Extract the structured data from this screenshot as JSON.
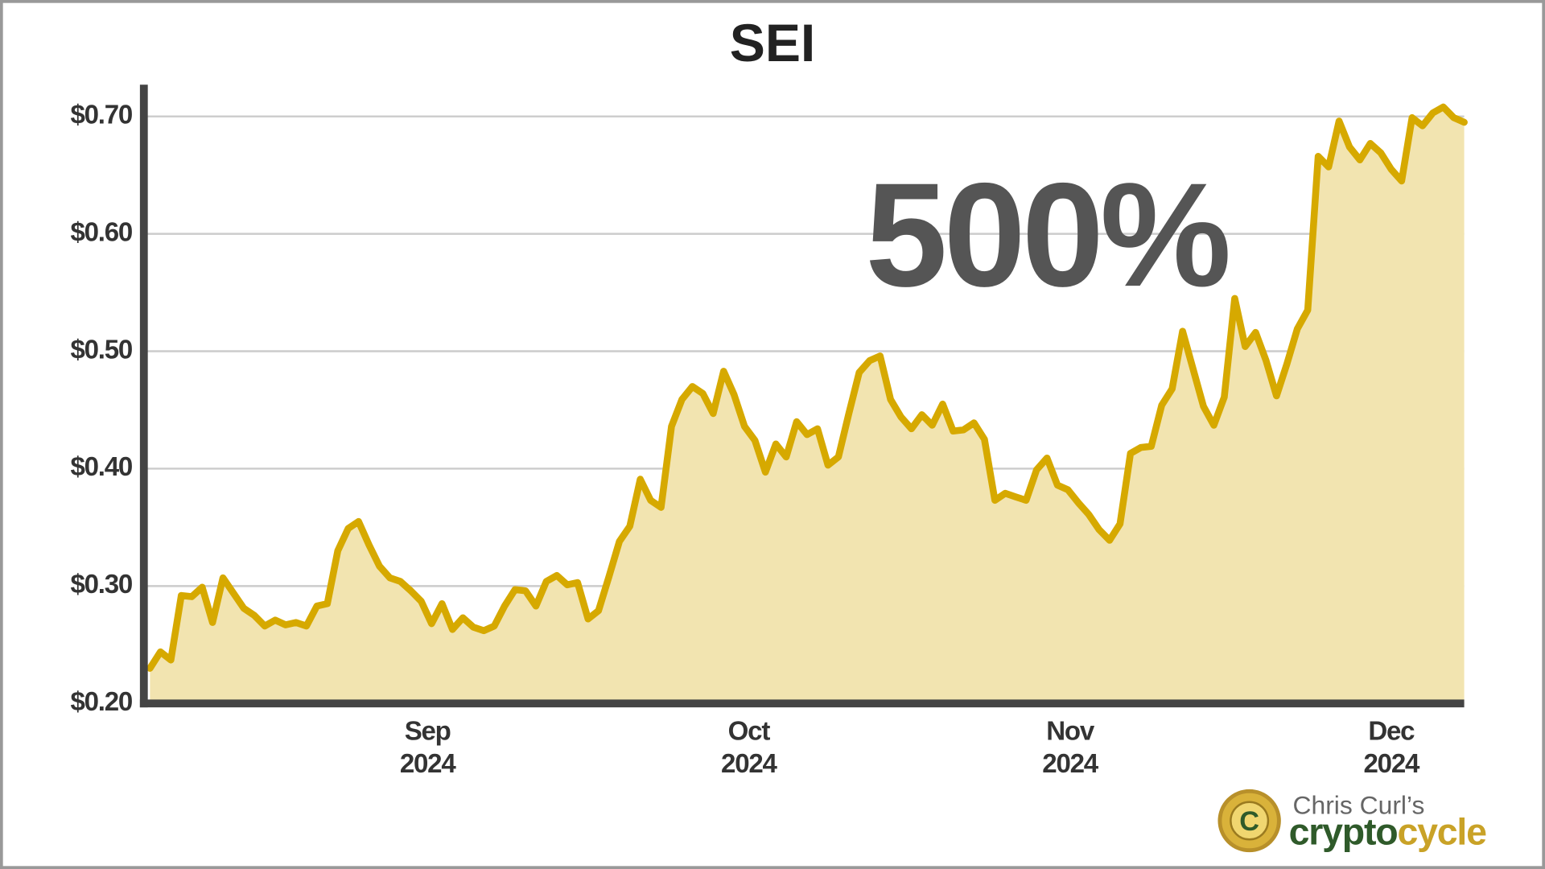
{
  "chart_data": {
    "type": "line",
    "title": "SEI",
    "annotation": "500%",
    "values": [
      0.23,
      0.244,
      0.237,
      0.292,
      0.291,
      0.299,
      0.269,
      0.307,
      0.294,
      0.281,
      0.275,
      0.266,
      0.271,
      0.267,
      0.269,
      0.266,
      0.283,
      0.285,
      0.33,
      0.349,
      0.355,
      0.335,
      0.317,
      0.307,
      0.304,
      0.296,
      0.287,
      0.268,
      0.285,
      0.263,
      0.273,
      0.265,
      0.262,
      0.266,
      0.283,
      0.297,
      0.296,
      0.283,
      0.304,
      0.309,
      0.301,
      0.303,
      0.272,
      0.279,
      0.308,
      0.338,
      0.351,
      0.391,
      0.373,
      0.367,
      0.436,
      0.459,
      0.47,
      0.464,
      0.447,
      0.483,
      0.463,
      0.436,
      0.424,
      0.397,
      0.421,
      0.41,
      0.44,
      0.429,
      0.434,
      0.403,
      0.41,
      0.447,
      0.482,
      0.492,
      0.496,
      0.459,
      0.444,
      0.434,
      0.446,
      0.437,
      0.455,
      0.432,
      0.433,
      0.439,
      0.425,
      0.373,
      0.379,
      0.376,
      0.373,
      0.399,
      0.409,
      0.386,
      0.382,
      0.371,
      0.361,
      0.348,
      0.339,
      0.353,
      0.413,
      0.418,
      0.419,
      0.454,
      0.468,
      0.517,
      0.485,
      0.453,
      0.437,
      0.461,
      0.545,
      0.504,
      0.516,
      0.492,
      0.462,
      0.489,
      0.519,
      0.535,
      0.666,
      0.657,
      0.696,
      0.674,
      0.663,
      0.677,
      0.669,
      0.655,
      0.645,
      0.699,
      0.692,
      0.703,
      0.708,
      0.699,
      0.695
    ],
    "color": "#d6a900",
    "fill_color": "#f2e4b0",
    "xlim": [
      -0.4,
      126
    ],
    "ylim": [
      0.2,
      0.727
    ],
    "xticks": [
      {
        "value": 26.6,
        "label": "Sep\n2024"
      },
      {
        "value": 57.4,
        "label": "Oct\n2024"
      },
      {
        "value": 88.2,
        "label": "Nov\n2024"
      },
      {
        "value": 119,
        "label": "Dec\n2024"
      }
    ],
    "yticks": [
      {
        "value": 0.2,
        "label": "$0.20"
      },
      {
        "value": 0.3,
        "label": "$0.30"
      },
      {
        "value": 0.4,
        "label": "$0.40"
      },
      {
        "value": 0.5,
        "label": "$0.50"
      },
      {
        "value": 0.6,
        "label": "$0.60"
      },
      {
        "value": 0.7,
        "label": "$0.70"
      }
    ],
    "grid": true
  },
  "logo": {
    "byline": "Chris Curl’s",
    "word": [
      "crypto",
      "cycle"
    ]
  }
}
